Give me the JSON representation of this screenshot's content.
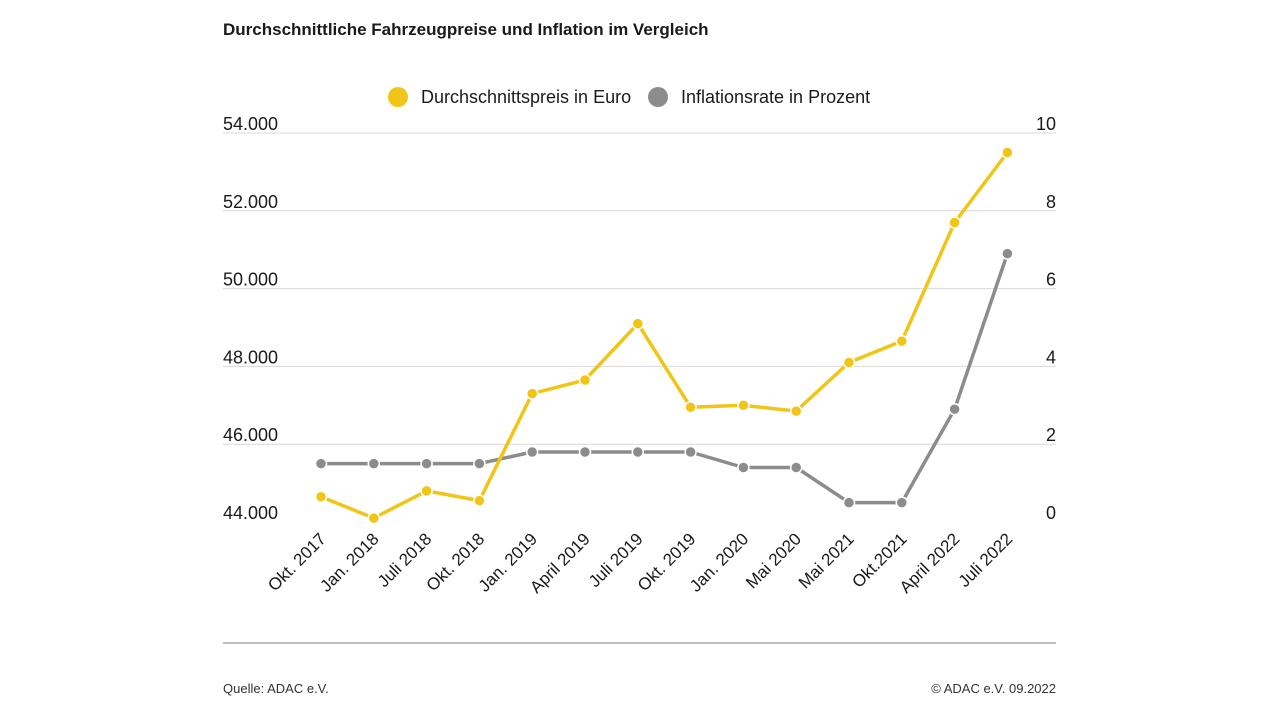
{
  "colors": {
    "price": "#f1c518",
    "inflation": "#8c8c8c",
    "grid": "#d9d9d9"
  },
  "footer": {
    "source": "Quelle: ADAC e.V.",
    "copyright": "© ADAC e.V. 09.2022"
  },
  "chart_data": {
    "type": "line",
    "title": "Durchschnittliche Fahrzeugpreise und Inflation im Vergleich",
    "legend_position": "top-center",
    "grid": true,
    "categories": [
      "Okt. 2017",
      "Jan. 2018",
      "Juli 2018",
      "Okt. 2018",
      "Jan. 2019",
      "April 2019",
      "Juli 2019",
      "Okt. 2019",
      "Jan. 2020",
      "Mai 2020",
      "Mai 2021",
      "Okt.2021",
      "April 2022",
      "Juli 2022"
    ],
    "y_left": {
      "ylim": [
        44000,
        54000
      ],
      "ticks": [
        "44.000",
        "46.000",
        "48.000",
        "50.000",
        "52.000",
        "54.000"
      ]
    },
    "y_right": {
      "ylim": [
        0,
        10
      ],
      "ticks": [
        "0",
        "2",
        "4",
        "6",
        "8",
        "10"
      ]
    },
    "series": [
      {
        "name": "Durchschnittspreis in Euro",
        "axis": "left",
        "values": [
          44650,
          44100,
          44800,
          44550,
          47300,
          47650,
          49100,
          46950,
          47000,
          46850,
          48100,
          48650,
          51700,
          53500
        ]
      },
      {
        "name": "Inflationsrate in Prozent",
        "axis": "right",
        "values": [
          1.5,
          1.5,
          1.5,
          1.5,
          1.8,
          1.8,
          1.8,
          1.8,
          1.4,
          1.4,
          0.5,
          0.5,
          2.9,
          6.9
        ]
      }
    ]
  }
}
